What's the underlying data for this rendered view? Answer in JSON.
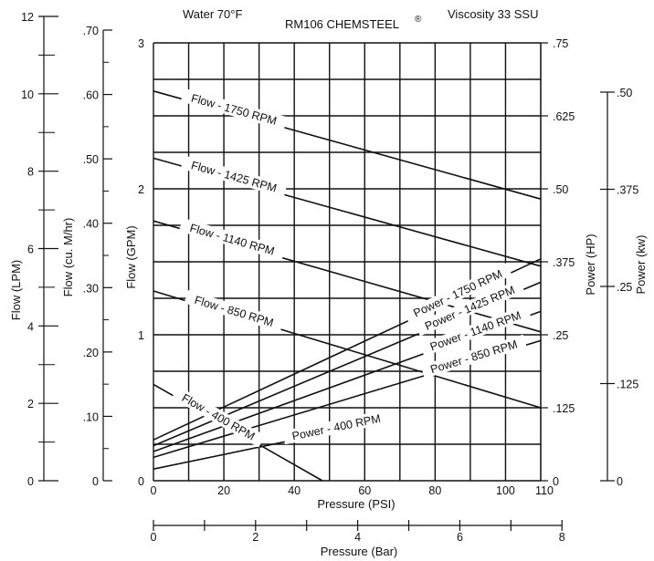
{
  "chart_data": {
    "type": "line",
    "title": "RM106 CHEMSTEEL",
    "title_mark": "®",
    "note_left": "Water 70°F",
    "note_right": "Viscosity 33 SSU",
    "xlabel": "Pressure (PSI)",
    "xlabel2": "Pressure (Bar)",
    "xlim": [
      0,
      110
    ],
    "x_ticks": [
      "0",
      "20",
      "40",
      "60",
      "80",
      "100",
      "110"
    ],
    "bar_ticks": [
      "0",
      "2",
      "4",
      "6",
      "8"
    ],
    "axes": {
      "gpm": {
        "label": "Flow (GPM)",
        "ticks": [
          "0",
          "1",
          "2",
          "3"
        ]
      },
      "m3hr": {
        "label": "Flow (cu. M/hr)",
        "ticks": [
          "0",
          ".10",
          ".20",
          ".30",
          ".40",
          ".50",
          ".60",
          ".70"
        ]
      },
      "lpm": {
        "label": "Flow (LPM)",
        "ticks": [
          "0",
          "2",
          "4",
          "6",
          "8",
          "10",
          "12"
        ]
      },
      "hp": {
        "label": "Power (HP)",
        "ticks": [
          "0",
          ".125",
          ".25",
          ".375",
          ".50",
          ".625",
          ".75"
        ]
      },
      "kw": {
        "label": "Power (kw)",
        "ticks": [
          "0",
          ".125",
          ".25",
          ".375",
          ".50"
        ]
      }
    },
    "grid": true,
    "flow_series": [
      {
        "name": "Flow - 1750 RPM",
        "x": [
          0,
          110
        ],
        "y": [
          2.67,
          1.93
        ]
      },
      {
        "name": "Flow - 1425 RPM",
        "x": [
          0,
          110
        ],
        "y": [
          2.21,
          1.47
        ]
      },
      {
        "name": "Flow - 1140 RPM",
        "x": [
          0,
          110
        ],
        "y": [
          1.78,
          1.02
        ]
      },
      {
        "name": "Flow - 850 RPM",
        "x": [
          0,
          110
        ],
        "y": [
          1.3,
          0.5
        ]
      },
      {
        "name": "Flow - 400 RPM",
        "x": [
          0,
          48
        ],
        "y": [
          0.66,
          0.0
        ]
      }
    ],
    "power_series": [
      {
        "name": "Power - 1750 RPM",
        "x": [
          0,
          110
        ],
        "y": [
          0.07,
          0.38
        ]
      },
      {
        "name": "Power - 1425 RPM",
        "x": [
          0,
          110
        ],
        "y": [
          0.06,
          0.34
        ]
      },
      {
        "name": "Power - 1140 RPM",
        "x": [
          0,
          110
        ],
        "y": [
          0.05,
          0.29
        ]
      },
      {
        "name": "Power - 850 RPM",
        "x": [
          0,
          110
        ],
        "y": [
          0.04,
          0.24
        ]
      },
      {
        "name": "Power - 400 RPM",
        "x": [
          0,
          40
        ],
        "y": [
          0.02,
          0.07
        ]
      }
    ]
  }
}
